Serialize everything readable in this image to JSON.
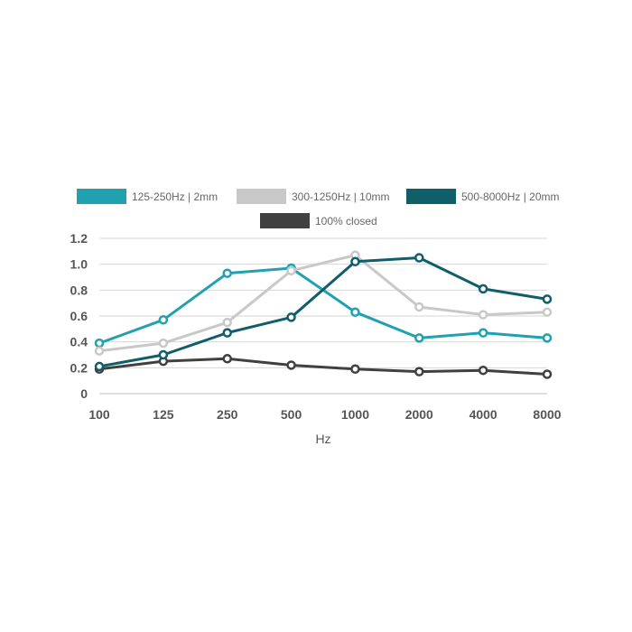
{
  "chart_data": {
    "type": "line",
    "title": "",
    "xlabel": "Hz",
    "ylabel": "",
    "categories": [
      "100",
      "125",
      "250",
      "500",
      "1000",
      "2000",
      "4000",
      "8000"
    ],
    "ylim": [
      0,
      1.2
    ],
    "yticks": [
      "0",
      "0.2",
      "0.4",
      "0.6",
      "0.8",
      "1.0",
      "1.2"
    ],
    "grid": true,
    "legend_position": "top",
    "series": [
      {
        "name": "125-250Hz | 2mm",
        "color": "#21A0B0",
        "values": [
          0.39,
          0.57,
          0.93,
          0.97,
          0.63,
          0.43,
          0.47,
          0.43
        ]
      },
      {
        "name": "300-1250Hz | 10mm",
        "color": "#C8C8C8",
        "values": [
          0.33,
          0.39,
          0.55,
          0.95,
          1.07,
          0.67,
          0.61,
          0.63
        ]
      },
      {
        "name": "500-8000Hz | 20mm",
        "color": "#115E6B",
        "values": [
          0.21,
          0.3,
          0.47,
          0.59,
          1.02,
          1.05,
          0.81,
          0.73
        ]
      },
      {
        "name": "100% closed",
        "color": "#404040",
        "values": [
          0.19,
          0.25,
          0.27,
          0.22,
          0.19,
          0.17,
          0.18,
          0.15
        ]
      }
    ]
  }
}
